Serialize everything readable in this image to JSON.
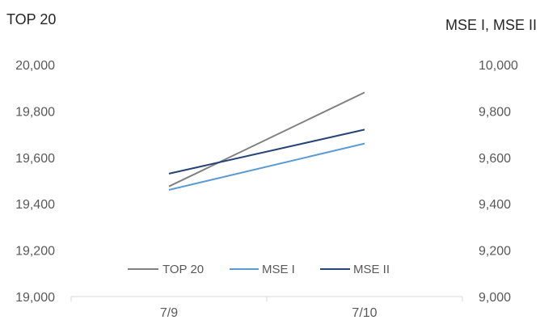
{
  "chart_data": {
    "type": "line",
    "categories": [
      "7/9",
      "7/10"
    ],
    "left_axis": {
      "title": "TOP 20",
      "ylim": [
        19000,
        20000
      ],
      "ticks": [
        "19,000",
        "19,200",
        "19,400",
        "19,600",
        "19,800",
        "20,000"
      ],
      "tick_values": [
        19000,
        19200,
        19400,
        19600,
        19800,
        20000
      ]
    },
    "right_axis": {
      "title": "MSE I, MSE II",
      "ylim": [
        9000,
        10000
      ],
      "ticks": [
        "9,000",
        "9,200",
        "9,400",
        "9,600",
        "9,800",
        "10,000"
      ],
      "tick_values": [
        9000,
        9200,
        9400,
        9600,
        9800,
        10000
      ]
    },
    "series": [
      {
        "name": "TOP 20",
        "axis": "left",
        "color": "#808080",
        "values": [
          19475,
          19880
        ]
      },
      {
        "name": "MSE I",
        "axis": "right",
        "color": "#5B9BD5",
        "values": [
          9460,
          9660
        ]
      },
      {
        "name": "MSE II",
        "axis": "right",
        "color": "#264478",
        "values": [
          9530,
          9720
        ]
      }
    ],
    "legend": {
      "placement": "bottom-inside"
    },
    "grid": false
  }
}
